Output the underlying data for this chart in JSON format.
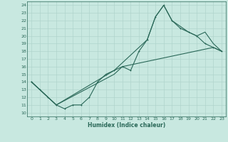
{
  "xlabel": "Humidex (Indice chaleur)",
  "bg_color": "#c8e8e0",
  "line_color": "#2a6858",
  "grid_color": "#b0d4cc",
  "xlim": [
    -0.5,
    23.5
  ],
  "ylim": [
    9.5,
    24.5
  ],
  "xticks": [
    0,
    1,
    2,
    3,
    4,
    5,
    6,
    7,
    8,
    9,
    10,
    11,
    12,
    13,
    14,
    15,
    16,
    17,
    18,
    19,
    20,
    21,
    22,
    23
  ],
  "yticks": [
    10,
    11,
    12,
    13,
    14,
    15,
    16,
    17,
    18,
    19,
    20,
    21,
    22,
    23,
    24
  ],
  "line1_x": [
    0,
    1,
    2,
    3,
    4,
    5,
    6,
    7,
    8,
    9,
    10,
    11,
    12,
    13,
    14,
    15,
    16,
    17,
    18,
    19,
    20,
    21,
    22,
    23
  ],
  "line1_y": [
    14,
    13,
    12,
    11,
    10.5,
    11,
    11,
    12,
    14,
    15,
    15.5,
    16,
    15.5,
    18,
    19.5,
    22.5,
    24,
    22,
    21,
    20.5,
    20,
    19,
    18.5,
    18
  ],
  "line2_x": [
    0,
    1,
    3,
    10,
    11,
    22,
    23
  ],
  "line2_y": [
    14,
    13,
    11,
    15,
    16,
    18.5,
    18
  ],
  "line3_x": [
    0,
    3,
    10,
    14,
    15,
    16,
    17,
    19,
    20,
    21,
    22,
    23
  ],
  "line3_y": [
    14,
    11,
    15.5,
    19.5,
    22.5,
    24,
    22,
    20.5,
    20,
    20.5,
    19,
    18
  ]
}
